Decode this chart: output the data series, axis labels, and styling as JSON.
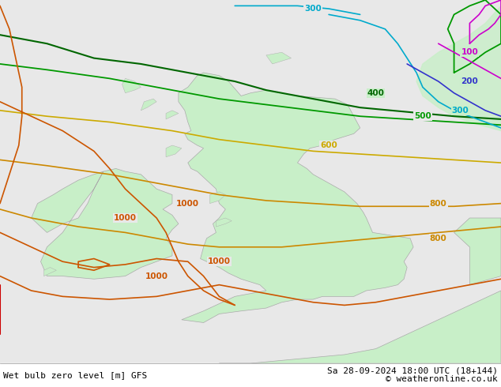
{
  "title_left": "Wet bulb zero level [m] GFS",
  "title_right": "Sa 28-09-2024 18:00 UTC (18+144)",
  "copyright": "© weatheronline.co.uk",
  "bg_color": "#e8e8e8",
  "land_color": "#c8efc8",
  "coast_color": "#aaaaaa",
  "contour_colors": {
    "100": "#cc00cc",
    "200": "#3333cc",
    "300": "#00aacc",
    "400": "#006600",
    "500": "#009900",
    "600": "#ccaa00",
    "800": "#cc8800",
    "1000": "#cc5500"
  },
  "label_fontsize": 7.5,
  "footer_fontsize": 8,
  "figsize": [
    6.34,
    4.9
  ],
  "dpi": 100,
  "lon_min": -11.5,
  "lon_max": 4.5,
  "lat_min": 48.5,
  "lat_max": 61.0
}
